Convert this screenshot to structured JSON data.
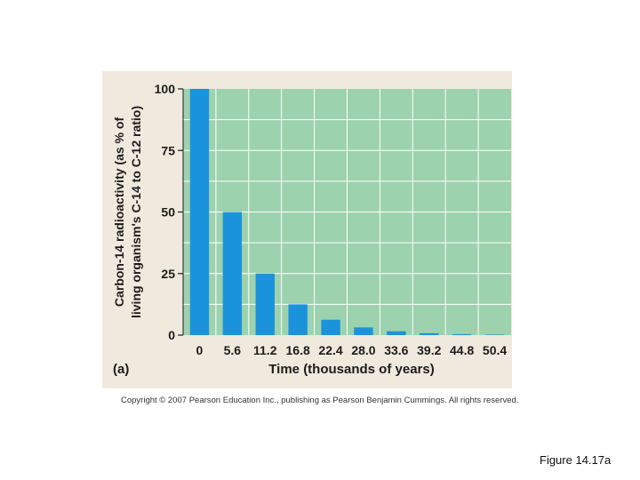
{
  "chart_data": {
    "type": "bar",
    "panel_label": "(a)",
    "categories": [
      "0",
      "5.6",
      "11.2",
      "16.8",
      "22.4",
      "28.0",
      "33.6",
      "39.2",
      "44.8",
      "50.4"
    ],
    "values": [
      100,
      50,
      25,
      12.5,
      6.25,
      3.125,
      1.5625,
      0.78,
      0.39,
      0.2
    ],
    "xlabel": "Time (thousands of years)",
    "ylabel_lines": [
      "Carbon-14 radioactivity (as % of",
      "living organism's C-14 to C-12 ratio)"
    ],
    "yticks": [
      0,
      25,
      50,
      75,
      100
    ],
    "ylim": [
      0,
      100
    ],
    "grid": true,
    "colors": {
      "bar": "#1b93dc",
      "plot_background": "#9dd2ae",
      "panel_background": "#f0e9dd",
      "grid": "#ffffff",
      "text": "#1c1c1c"
    }
  },
  "copyright": "Copyright © 2007 Pearson Education Inc., publishing as Pearson Benjamin Cummings. All rights reserved.",
  "figure_caption": "Figure 14.17a"
}
